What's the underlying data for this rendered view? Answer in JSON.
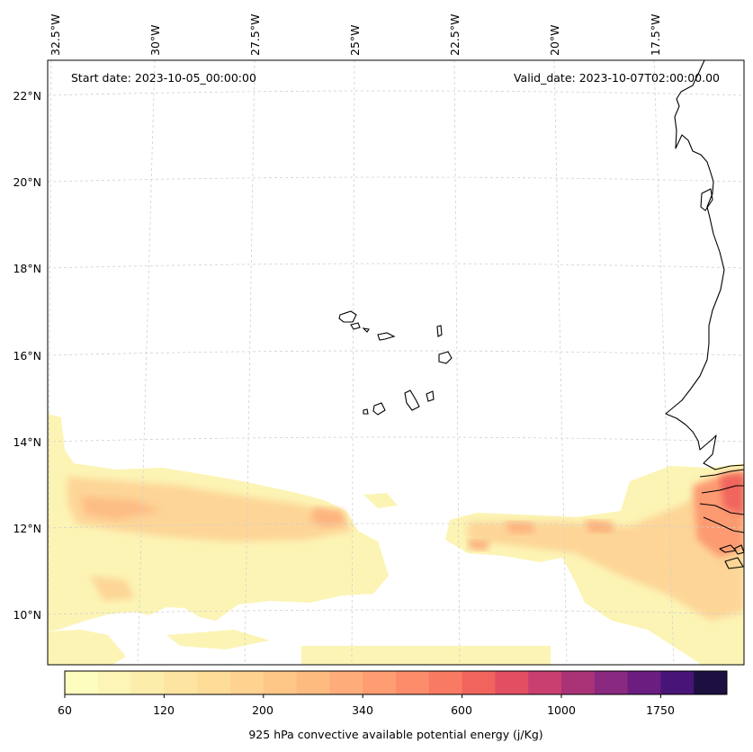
{
  "map": {
    "start_date": "Start date: 2023-10-05_00:00:00",
    "valid_date": "Valid_date: 2023-10-07T02:00:00.00",
    "lon_labels": [
      "32.5°W",
      "30°W",
      "27.5°W",
      "25°W",
      "22.5°W",
      "20°W",
      "17.5°W"
    ],
    "lat_labels": [
      "22°N",
      "20°N",
      "18°N",
      "16°N",
      "14°N",
      "12°N",
      "10°N"
    ]
  },
  "colorbar": {
    "label": "925 hPa convective available potential energy (j/Kg)",
    "tick_labels": [
      "60",
      "120",
      "200",
      "340",
      "600",
      "1000",
      "1750"
    ],
    "colors": [
      "#fcfdbf",
      "#fcf5b5",
      "#fcedab",
      "#fde4a1",
      "#fddc98",
      "#fed28f",
      "#fec787",
      "#febb80",
      "#fead7a",
      "#fe9d72",
      "#fc8c6a",
      "#f97a62",
      "#f1645d",
      "#e24f63",
      "#c93f6f",
      "#aa3378",
      "#8a2980",
      "#6b1e7f",
      "#491477",
      "#1c1040"
    ]
  },
  "colors": {
    "coastline": "#000000",
    "gridline": "#d0d0d0",
    "frame": "#000000"
  }
}
